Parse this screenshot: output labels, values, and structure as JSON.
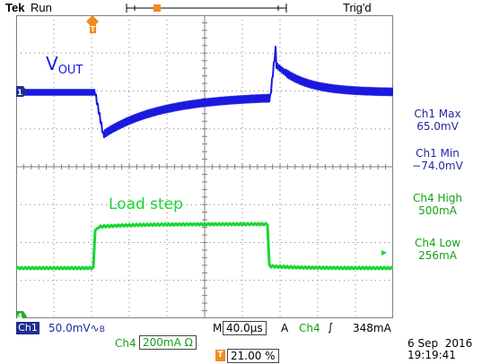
{
  "header": {
    "brand": "Tek",
    "run_state": "Run",
    "trigger_status": "Trig'd",
    "trigger_marker_label": "T"
  },
  "waveforms": {
    "ch1_label": "V",
    "ch1_label_subscript": "OUT",
    "ch4_label": "Load step",
    "ch1_marker": "1",
    "ch4_marker": "4",
    "ch1_color": "#1a1adf",
    "ch4_color": "#19d633",
    "grid_color": "#7f7f7f"
  },
  "measurements": [
    {
      "label": "Ch1 Max",
      "value": "65.0mV"
    },
    {
      "label": "Ch1 Min",
      "value": "−74.0mV"
    },
    {
      "label": "Ch4 High",
      "value": "500mA"
    },
    {
      "label": "Ch4 Low",
      "value": "256mA"
    }
  ],
  "status_bar": {
    "ch1_tag": "Ch1",
    "ch1_scale": "50.0mV",
    "ch1_coupling": "∿",
    "ch1_bw": "B",
    "ch4_label": "Ch4",
    "ch4_scale": "200mA",
    "ch4_coupling": "Ω",
    "timebase_prefix": "M",
    "timebase": "40.0µs",
    "trigger_mode": "A",
    "trigger_source": "Ch4",
    "trigger_slope": "∫",
    "trigger_level": "348mA",
    "trigger_position_icon": "T",
    "trigger_position": "21.00 %",
    "date": "6 Sep  2016",
    "time": "19:19:41"
  }
}
